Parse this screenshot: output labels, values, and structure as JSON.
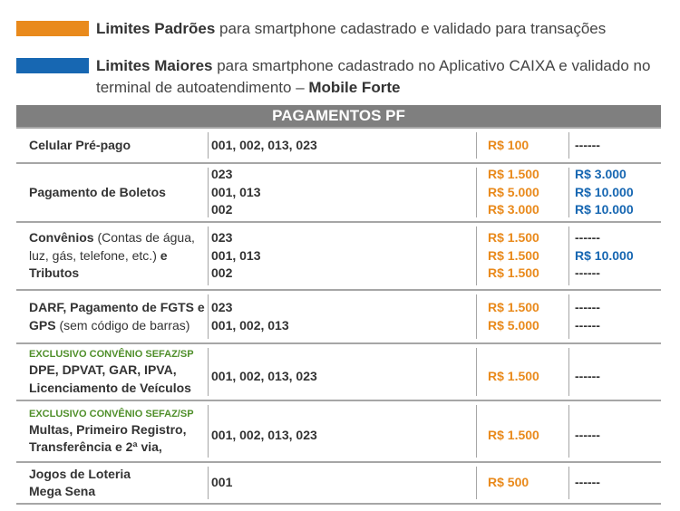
{
  "legend": [
    {
      "color": "#e98a1c",
      "bold": "Limites Padrões",
      "text": " para smartphone cadastrado e validado para transações"
    },
    {
      "color": "#1767b2",
      "bold": "Limites Maiores",
      "text": " para smartphone cadastrado no Aplicativo CAIXA e validado no terminal de autoatendimento – ",
      "bold2": "Mobile Forte"
    }
  ],
  "table": {
    "title": "PAGAMENTOS PF",
    "rows": [
      {
        "name": [
          {
            "t": "Celular Pré-pago",
            "b": true
          }
        ],
        "codes": [
          "001, 002, 013, 023"
        ],
        "std": [
          "R$ 100"
        ],
        "max": [
          "------"
        ]
      },
      {
        "name": [
          {
            "t": "Pagamento de Boletos",
            "b": true
          }
        ],
        "codes": [
          "023",
          "001, 013",
          "002"
        ],
        "std": [
          "R$ 1.500",
          "R$ 5.000",
          "R$ 3.000"
        ],
        "max": [
          "R$ 3.000",
          "R$ 10.000",
          "R$ 10.000"
        ]
      },
      {
        "name": [
          {
            "t": "Convênios",
            "b": true
          },
          {
            "t": " (Contas de água, luz, gás, telefone, etc.) ",
            "b": false
          },
          {
            "t": "e Tributos",
            "b": true
          }
        ],
        "codes": [
          "023",
          "001, 013",
          "002"
        ],
        "std": [
          "R$ 1.500",
          "R$ 1.500",
          "R$ 1.500"
        ],
        "max": [
          "------",
          "R$ 10.000",
          "------"
        ]
      },
      {
        "name": [
          {
            "t": "DARF, Pagamento de FGTS e GPS",
            "b": true
          },
          {
            "t": " (sem código de barras)",
            "b": false
          }
        ],
        "codes": [
          "023",
          "001, 002, 013"
        ],
        "std": [
          "R$ 1.500",
          "R$ 5.000"
        ],
        "max": [
          "------",
          "------"
        ]
      },
      {
        "tag": "EXCLUSIVO CONVÊNIO SEFAZ/SP",
        "name": [
          {
            "t": "DPE, DPVAT, GAR, IPVA, Licenciamento de Veículos",
            "b": true
          }
        ],
        "codes": [
          "001, 002, 013, 023"
        ],
        "std": [
          "R$ 1.500"
        ],
        "max": [
          "------"
        ]
      },
      {
        "tag": "EXCLUSIVO CONVÊNIO SEFAZ/SP",
        "name": [
          {
            "t": "Multas, Primeiro Registro, Transferência e 2ª via,",
            "b": true
          }
        ],
        "codes": [
          "001, 002, 013, 023"
        ],
        "std": [
          "R$ 1.500"
        ],
        "max": [
          "------"
        ]
      },
      {
        "name": [
          {
            "t": "Jogos de Loteria",
            "b": true
          },
          {
            "t": "Mega Sena",
            "b": true
          }
        ],
        "codes": [
          "001"
        ],
        "std": [
          "R$ 500"
        ],
        "max": [
          "------"
        ]
      }
    ]
  }
}
